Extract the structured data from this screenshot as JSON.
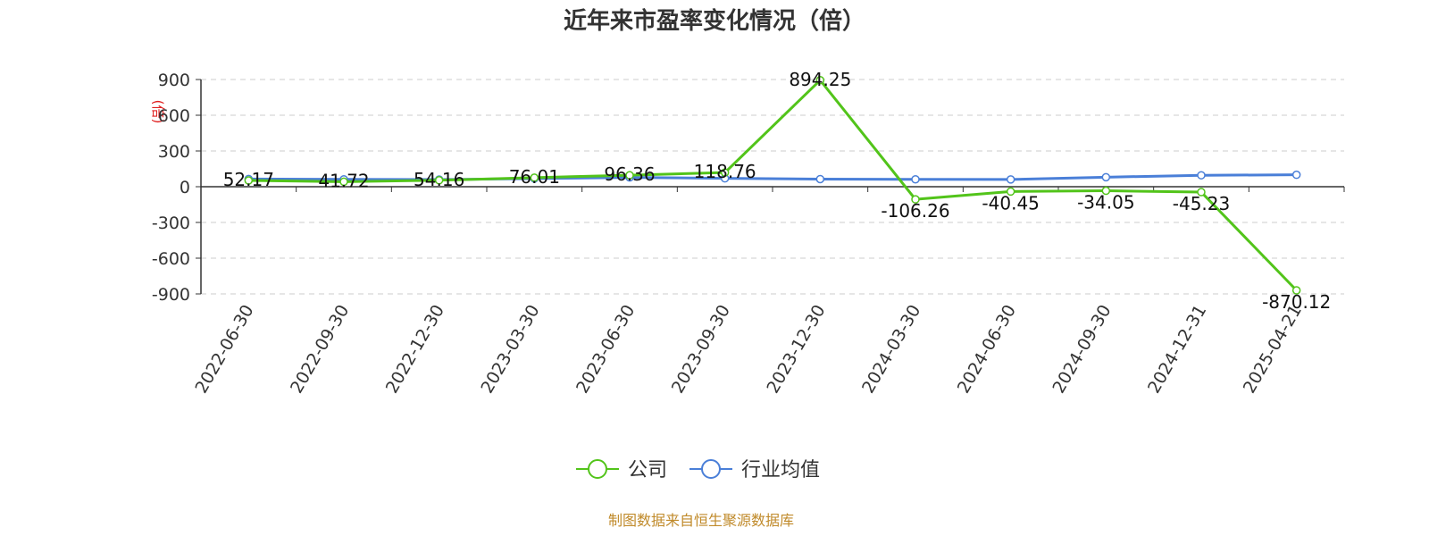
{
  "chart_data": {
    "type": "line",
    "title": "近年来市盈率变化情况（倍）",
    "ylabel": "(倍)",
    "ylim": [
      -900,
      900
    ],
    "yticks": [
      900,
      600,
      300,
      0,
      -300,
      -600,
      -900
    ],
    "grid": true,
    "legend_position": "bottom",
    "categories": [
      "2022-06-30",
      "2022-09-30",
      "2022-12-30",
      "2023-03-30",
      "2023-06-30",
      "2023-09-30",
      "2023-12-30",
      "2024-03-30",
      "2024-06-30",
      "2024-09-30",
      "2024-12-31",
      "2025-04-21"
    ],
    "series": [
      {
        "name": "公司",
        "color": "#52c41a",
        "values": [
          52.17,
          41.72,
          54.16,
          76.01,
          96.36,
          118.76,
          894.25,
          -106.26,
          -40.45,
          -34.05,
          -45.23,
          -870.12
        ],
        "labels": [
          "52.17",
          "41.72",
          "54.16",
          "76.01",
          "96.36",
          "118.76",
          "894.25",
          "-106.26",
          "-40.45",
          "-34.05",
          "-45.23",
          "-870.12"
        ]
      },
      {
        "name": "行业均值",
        "color": "#4a7fd8",
        "values": [
          65,
          62,
          60,
          68,
          78,
          70,
          64,
          62,
          61,
          80,
          96,
          100
        ]
      }
    ],
    "source_note": "制图数据来自恒生聚源数据库"
  }
}
